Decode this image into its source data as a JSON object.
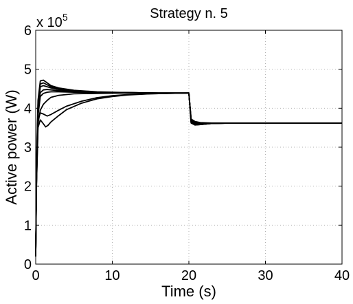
{
  "chart_data": {
    "type": "line",
    "title": "Strategy n. 5",
    "xlabel": "Time (s)",
    "ylabel": "Active power (W)",
    "xlim": [
      0,
      40
    ],
    "ylim": [
      0,
      600000
    ],
    "x_ticks": [
      0,
      10,
      20,
      30,
      40
    ],
    "x_tick_labels": [
      "0",
      "10",
      "20",
      "30",
      "40"
    ],
    "y_ticks": [
      0,
      100000,
      200000,
      300000,
      400000,
      500000,
      600000
    ],
    "y_tick_labels": [
      "0",
      "1",
      "2",
      "3",
      "4",
      "5",
      "6"
    ],
    "y_multiplier": {
      "base": "x 10",
      "exponent": "5"
    },
    "grid": "dotted",
    "legend": "none",
    "series_color": "#000000",
    "series": [
      {
        "x": [
          0,
          0.1,
          0.3,
          0.6,
          1,
          1.5,
          2,
          3,
          5,
          8,
          12,
          16,
          19.9,
          20,
          20.3,
          20.8,
          21.5,
          23,
          26,
          30,
          35,
          40
        ],
        "y": [
          20000,
          250000,
          420000,
          470000,
          472000,
          465000,
          458000,
          452000,
          446000,
          442000,
          440000,
          439000,
          439000,
          439000,
          372000,
          366000,
          363000,
          362000,
          362000,
          362000,
          362000,
          362000
        ]
      },
      {
        "x": [
          0,
          0.1,
          0.3,
          0.6,
          1,
          1.5,
          2,
          3,
          5,
          8,
          12,
          16,
          19.9,
          20,
          20.3,
          20.8,
          21.5,
          23,
          26,
          30,
          35,
          40
        ],
        "y": [
          20000,
          240000,
          410000,
          462000,
          465000,
          460000,
          455000,
          450000,
          445000,
          441000,
          440000,
          439000,
          439000,
          439000,
          370000,
          364000,
          362000,
          362000,
          362000,
          362000,
          362000,
          362000
        ]
      },
      {
        "x": [
          0,
          0.1,
          0.3,
          0.6,
          1,
          1.5,
          2,
          3,
          5,
          8,
          12,
          16,
          19.9,
          20,
          20.3,
          20.8,
          21.5,
          23,
          26,
          30,
          35,
          40
        ],
        "y": [
          20000,
          230000,
          400000,
          455000,
          458000,
          455000,
          452000,
          448000,
          444000,
          441000,
          440000,
          439000,
          439000,
          439000,
          368000,
          362000,
          361000,
          362000,
          362000,
          362000,
          362000,
          362000
        ]
      },
      {
        "x": [
          0,
          0.1,
          0.3,
          0.6,
          1,
          1.5,
          2,
          3,
          5,
          8,
          12,
          16,
          19.9,
          20,
          20.3,
          20.8,
          21.5,
          23,
          26,
          30,
          35,
          40
        ],
        "y": [
          20000,
          220000,
          390000,
          440000,
          447000,
          448000,
          447000,
          445000,
          443000,
          441000,
          440000,
          439000,
          439000,
          439000,
          366000,
          360000,
          360000,
          361000,
          362000,
          362000,
          362000,
          362000
        ]
      },
      {
        "x": [
          0,
          0.1,
          0.3,
          0.6,
          1,
          1.5,
          2,
          3,
          5,
          8,
          12,
          16,
          19.9,
          20,
          20.3,
          20.8,
          21.5,
          23,
          26,
          30,
          35,
          40
        ],
        "y": [
          20000,
          210000,
          380000,
          430000,
          438000,
          441000,
          442000,
          442000,
          441000,
          440000,
          440000,
          439000,
          439000,
          439000,
          364000,
          358000,
          359000,
          361000,
          362000,
          362000,
          362000,
          362000
        ]
      },
      {
        "x": [
          0,
          0.1,
          0.3,
          0.6,
          1,
          1.5,
          2,
          3,
          5,
          8,
          12,
          16,
          19.9,
          20,
          20.3,
          20.8,
          21.5,
          23,
          26,
          30,
          35,
          40
        ],
        "y": [
          20000,
          200000,
          360000,
          395000,
          410000,
          420000,
          428000,
          433000,
          437000,
          438000,
          439000,
          439000,
          439000,
          439000,
          362000,
          357000,
          358000,
          361000,
          362000,
          362000,
          362000,
          362000
        ]
      },
      {
        "x": [
          0,
          0.1,
          0.3,
          0.6,
          1,
          1.3,
          1.6,
          2,
          3,
          4,
          6,
          8,
          10,
          12,
          15,
          19.9,
          20,
          20.3,
          20.8,
          21.5,
          23,
          26,
          30,
          35,
          40
        ],
        "y": [
          20000,
          200000,
          350000,
          370000,
          360000,
          352000,
          356000,
          365000,
          381000,
          396000,
          413000,
          424000,
          430000,
          434000,
          437000,
          439000,
          439000,
          362000,
          357000,
          358000,
          361000,
          362000,
          362000,
          362000,
          362000
        ]
      },
      {
        "x": [
          0,
          0.1,
          0.3,
          0.6,
          1,
          1.5,
          2,
          3,
          4,
          6,
          8,
          10,
          12,
          15,
          19.9,
          20,
          20.3,
          20.8,
          21.5,
          23,
          26,
          30,
          35,
          40
        ],
        "y": [
          20000,
          210000,
          370000,
          388000,
          385000,
          380000,
          384000,
          395000,
          405000,
          418000,
          427000,
          432000,
          435000,
          437000,
          439000,
          439000,
          363000,
          358000,
          358000,
          361000,
          362000,
          362000,
          362000,
          362000
        ]
      }
    ]
  }
}
